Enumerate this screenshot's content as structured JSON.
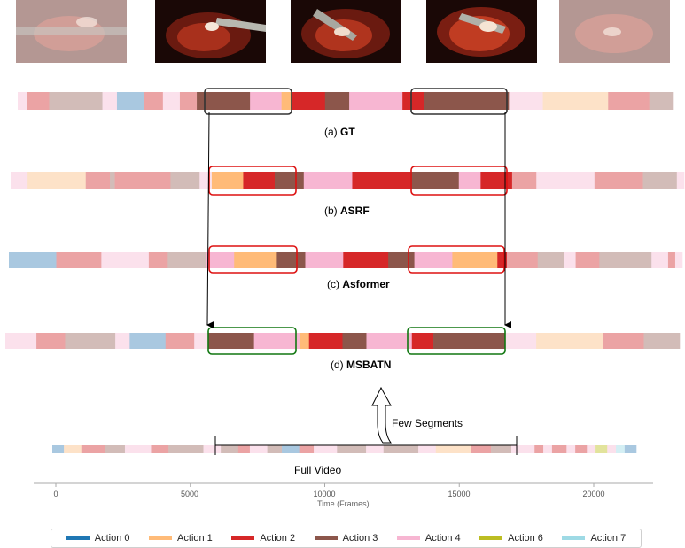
{
  "palette": {
    "a0": "#1f77b4",
    "a0l": "#a9c8e0",
    "a1": "#ffbb78",
    "a1l": "#fde2c8",
    "a2": "#d62728",
    "a2l": "#eba3a4",
    "a3": "#8c564b",
    "a3l": "#d2bcb8",
    "a4": "#f7b6d2",
    "a4l": "#fbe1ec",
    "a6": "#bcbd22",
    "a6l": "#e2e39c",
    "a7": "#9edae5",
    "a7l": "#d4eff4",
    "frame_dark": "#333333",
    "frame_red": "#dd1111",
    "frame_green": "#117711"
  },
  "rows": [
    {
      "label_prefix": "(a)",
      "label_name": "GT",
      "segments": [
        [
          "a4l",
          4
        ],
        [
          "a2l",
          9
        ],
        [
          "a3l",
          22
        ],
        [
          "a4l",
          6
        ],
        [
          "a0l",
          11
        ],
        [
          "a2l",
          8
        ],
        [
          "a4l",
          7
        ],
        [
          "a2l",
          7
        ],
        [
          "a3",
          22
        ],
        [
          "a4",
          13
        ],
        [
          "a1",
          4
        ],
        [
          "a2",
          14
        ],
        [
          "a3",
          10
        ],
        [
          "a4",
          22
        ],
        [
          "a2",
          9
        ],
        [
          "a3",
          35
        ],
        [
          "a4l",
          14
        ],
        [
          "a1l",
          27
        ],
        [
          "a2l",
          17
        ],
        [
          "a3l",
          10
        ]
      ]
    },
    {
      "label_prefix": "(b)",
      "label_name": "ASRF",
      "segments": [
        [
          "a4l",
          7
        ],
        [
          "a1l",
          24
        ],
        [
          "a2l",
          10
        ],
        [
          "a3l",
          2
        ],
        [
          "a2l",
          23
        ],
        [
          "a3l",
          12
        ],
        [
          "a4l",
          5
        ],
        [
          "a1",
          13
        ],
        [
          "a2",
          13
        ],
        [
          "a3",
          12
        ],
        [
          "a4",
          20
        ],
        [
          "a2",
          24
        ],
        [
          "a3",
          20
        ],
        [
          "a4",
          9
        ],
        [
          "a2",
          13
        ],
        [
          "a2l",
          10
        ],
        [
          "a4l",
          24
        ],
        [
          "a2l",
          20
        ],
        [
          "a3l",
          14
        ],
        [
          "a4l",
          3
        ]
      ]
    },
    {
      "label_prefix": "(c)",
      "label_name": "Asformer",
      "segments": [
        [
          "a0l",
          20
        ],
        [
          "a2l",
          19
        ],
        [
          "a4l",
          20
        ],
        [
          "a2l",
          8
        ],
        [
          "a3l",
          16
        ],
        [
          "a4",
          12
        ],
        [
          "a1",
          18
        ],
        [
          "a3",
          3
        ],
        [
          "a3",
          9
        ],
        [
          "a4",
          16
        ],
        [
          "a2",
          19
        ],
        [
          "a3",
          11
        ],
        [
          "a4",
          16
        ],
        [
          "a1",
          19
        ],
        [
          "a2",
          4
        ],
        [
          "a2l",
          13
        ],
        [
          "a3l",
          11
        ],
        [
          "a4l",
          5
        ],
        [
          "a2l",
          10
        ],
        [
          "a3l",
          22
        ],
        [
          "a4l",
          7
        ],
        [
          "a2l",
          3
        ],
        [
          "a4l",
          3
        ]
      ]
    },
    {
      "label_prefix": "(d)",
      "label_name": "MSBATN",
      "segments": [
        [
          "a4l",
          13
        ],
        [
          "a2l",
          12
        ],
        [
          "a3l",
          21
        ],
        [
          "a4l",
          6
        ],
        [
          "a0l",
          15
        ],
        [
          "a2l",
          12
        ],
        [
          "a4l",
          6
        ],
        [
          "a3",
          19
        ],
        [
          "a4",
          19
        ],
        [
          "a1",
          4
        ],
        [
          "a2",
          14
        ],
        [
          "a3",
          10
        ],
        [
          "a4",
          19
        ],
        [
          "a2",
          9
        ],
        [
          "a3",
          30
        ],
        [
          "a4l",
          13
        ],
        [
          "a1l",
          28
        ],
        [
          "a2l",
          17
        ],
        [
          "a3l",
          15
        ]
      ]
    }
  ],
  "full_video": {
    "label": "Full Video",
    "segments": [
      [
        "a0l",
        4
      ],
      [
        "a1l",
        6
      ],
      [
        "a2l",
        8
      ],
      [
        "a3l",
        7
      ],
      [
        "a4l",
        9
      ],
      [
        "a2l",
        6
      ],
      [
        "a3l",
        12
      ],
      [
        "a4l",
        6
      ],
      [
        "a3l",
        6
      ],
      [
        "a2l",
        4
      ],
      [
        "a4l",
        6
      ],
      [
        "a3l",
        5
      ],
      [
        "a0l",
        6
      ],
      [
        "a2l",
        5
      ],
      [
        "a4l",
        8
      ],
      [
        "a3l",
        10
      ],
      [
        "a4l",
        6
      ],
      [
        "a3l",
        12
      ],
      [
        "a4l",
        6
      ],
      [
        "a1l",
        12
      ],
      [
        "a2l",
        7
      ],
      [
        "a3l",
        7
      ],
      [
        "a4l",
        8
      ],
      [
        "a2l",
        3
      ],
      [
        "a4l",
        3
      ],
      [
        "a2l",
        5
      ],
      [
        "a4l",
        3
      ],
      [
        "a2l",
        4
      ],
      [
        "a4l",
        3
      ],
      [
        "a6l",
        4
      ],
      [
        "a4l",
        3
      ],
      [
        "a7l",
        3
      ],
      [
        "a0l",
        4
      ]
    ]
  },
  "few_segments_label": "Few Segments",
  "axis": {
    "title": "Time (Frames)",
    "ticks": [
      0,
      5000,
      10000,
      15000,
      20000
    ]
  },
  "legend": [
    {
      "label": "Action 0",
      "color": "#1f77b4"
    },
    {
      "label": "Action 1",
      "color": "#ffbb78"
    },
    {
      "label": "Action 2",
      "color": "#d62728"
    },
    {
      "label": "Action 3",
      "color": "#8c564b"
    },
    {
      "label": "Action 4",
      "color": "#f7b6d2"
    },
    {
      "label": "Action 6",
      "color": "#bcbd22"
    },
    {
      "label": "Action 7",
      "color": "#9edae5"
    }
  ]
}
